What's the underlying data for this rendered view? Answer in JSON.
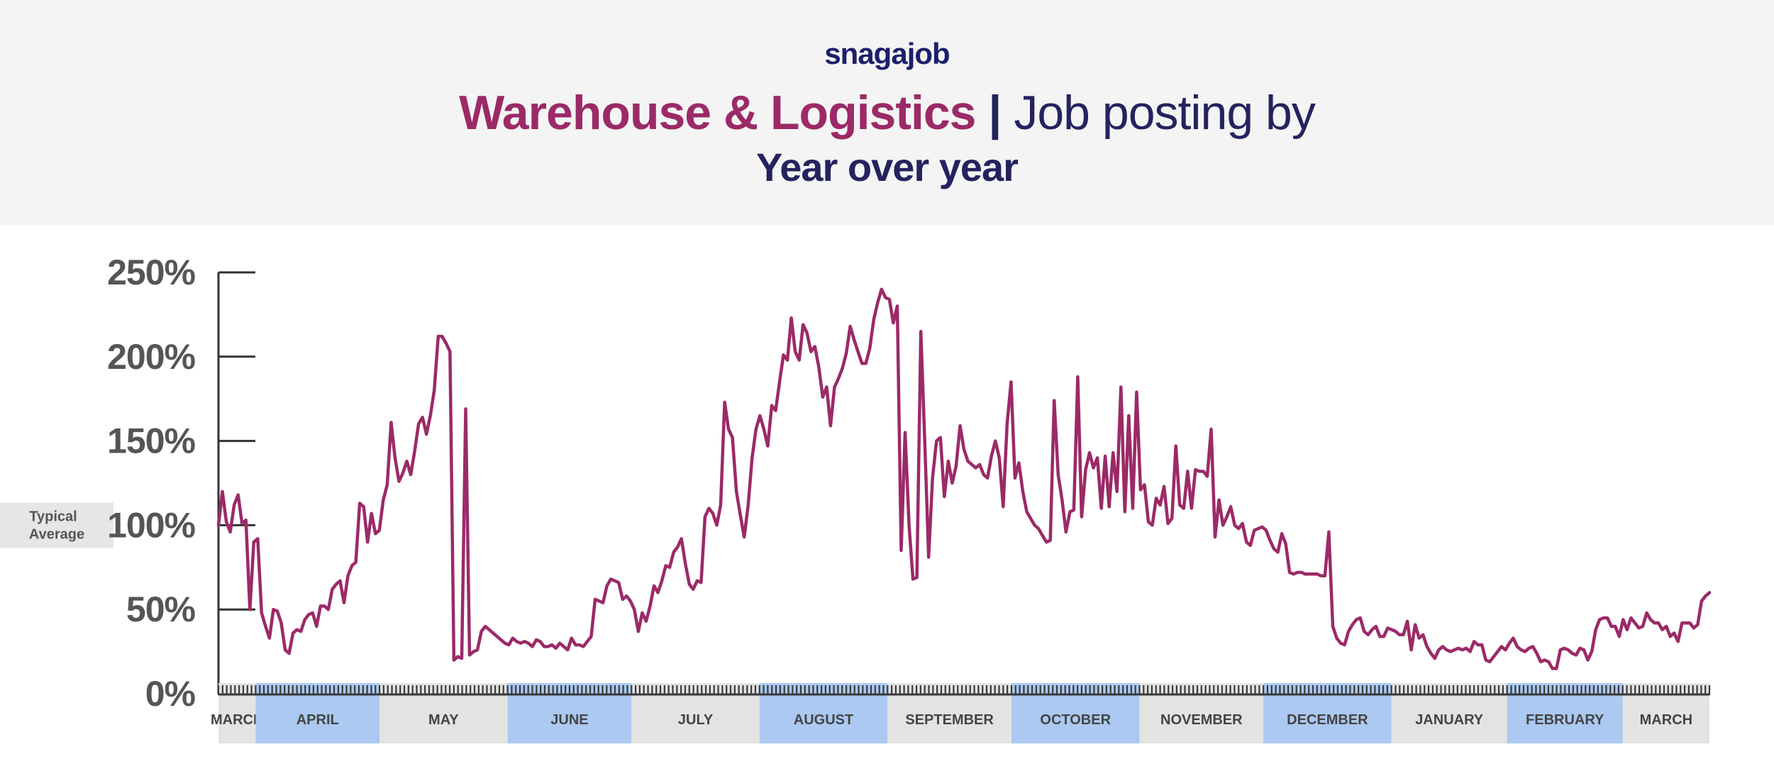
{
  "brand": {
    "logo_text": "snagajob",
    "logo_color": "#1d1f6b",
    "accent": "#9b2a67",
    "navy": "#24235f",
    "header_bg": "#f4f4f4"
  },
  "header": {
    "industry": "Warehouse & Logistics",
    "separator": "|",
    "title_rest": "Job posting by",
    "subtitle": "Year over year"
  },
  "chart_data": {
    "type": "line",
    "title": "Warehouse & Logistics | Job posting by Year over year",
    "xlabel": "",
    "ylabel": "",
    "ylim": [
      0,
      250
    ],
    "y_ticks": [
      0,
      50,
      100,
      150,
      200,
      250
    ],
    "y_tick_labels": [
      "0%",
      "50%",
      "100%",
      "150%",
      "200%",
      "250%"
    ],
    "reference_line": {
      "value": 100,
      "label_line1": "Typical",
      "label_line2": "Average"
    },
    "months": [
      {
        "label": "MARCH",
        "days": 9,
        "highlight": false
      },
      {
        "label": "APRIL",
        "days": 30,
        "highlight": true
      },
      {
        "label": "MAY",
        "days": 31,
        "highlight": false
      },
      {
        "label": "JUNE",
        "days": 30,
        "highlight": true
      },
      {
        "label": "JULY",
        "days": 31,
        "highlight": false
      },
      {
        "label": "AUGUST",
        "days": 31,
        "highlight": true
      },
      {
        "label": "SEPTEMBER",
        "days": 30,
        "highlight": false
      },
      {
        "label": "OCTOBER",
        "days": 31,
        "highlight": true
      },
      {
        "label": "NOVEMBER",
        "days": 30,
        "highlight": false
      },
      {
        "label": "DECEMBER",
        "days": 31,
        "highlight": true
      },
      {
        "label": "JANUARY",
        "days": 28,
        "highlight": false
      },
      {
        "label": "FEBRUARY",
        "days": 28,
        "highlight": true
      },
      {
        "label": "MARCH",
        "days": 21,
        "highlight": false
      }
    ],
    "colors": {
      "line": "#9b2a67",
      "month_highlight": "#abc9f1",
      "month_plain": "#e3e3e3",
      "axis": "#333333",
      "tick_text": "#555555"
    },
    "series": [
      {
        "values": [
          100,
          120,
          102,
          96,
          112,
          118,
          101,
          103,
          50,
          90,
          92,
          48,
          40,
          33,
          50,
          49,
          42,
          26,
          24,
          36,
          38,
          37,
          44,
          47,
          48,
          40,
          52,
          52,
          50,
          62,
          65,
          67,
          54,
          70,
          76,
          78,
          113,
          111,
          90,
          107,
          95,
          97,
          115,
          124,
          161,
          140,
          126,
          131,
          138,
          130,
          144,
          160,
          164,
          154,
          165,
          180,
          212,
          212,
          208,
          203,
          20,
          22,
          21,
          169,
          23,
          25,
          26,
          37,
          40,
          38,
          36,
          34,
          32,
          30,
          29,
          33,
          31,
          30,
          31,
          30,
          28,
          32,
          31,
          28,
          28,
          29,
          27,
          30,
          28,
          26,
          33,
          29,
          29,
          28,
          31,
          34,
          56,
          55,
          54,
          64,
          68,
          67,
          66,
          56,
          58,
          55,
          50,
          37,
          48,
          43,
          52,
          64,
          60,
          67,
          76,
          75,
          84,
          87,
          92,
          77,
          65,
          62,
          67,
          66,
          105,
          110,
          107,
          100,
          112,
          173,
          157,
          152,
          120,
          106,
          93,
          112,
          140,
          157,
          165,
          157,
          147,
          171,
          168,
          185,
          201,
          198,
          223,
          203,
          198,
          219,
          214,
          203,
          206,
          194,
          176,
          182,
          159,
          182,
          187,
          193,
          202,
          218,
          210,
          203,
          196,
          196,
          205,
          222,
          232,
          240,
          235,
          234,
          220,
          230,
          85,
          155,
          100,
          68,
          69,
          215,
          150,
          81,
          128,
          150,
          152,
          117,
          138,
          125,
          135,
          159,
          145,
          138,
          136,
          134,
          136,
          130,
          128,
          141,
          150,
          140,
          111,
          160,
          185,
          128,
          137,
          120,
          108,
          104,
          100,
          98,
          94,
          90,
          91,
          174,
          130,
          115,
          96,
          108,
          109,
          188,
          105,
          133,
          143,
          134,
          140,
          110,
          141,
          111,
          143,
          120,
          182,
          108,
          165,
          110,
          179,
          121,
          124,
          102,
          100,
          116,
          112,
          123,
          101,
          104,
          147,
          112,
          110,
          132,
          110,
          133,
          132,
          132,
          129,
          157,
          93,
          115,
          100,
          105,
          111,
          100,
          98,
          101,
          90,
          88,
          97,
          98,
          99,
          97,
          91,
          86,
          84,
          95,
          89,
          72,
          71,
          72,
          72,
          71,
          71,
          71,
          71,
          70,
          70,
          96,
          40,
          33,
          30,
          29,
          37,
          41,
          44,
          45,
          37,
          35,
          38,
          40,
          34,
          34,
          39,
          38,
          37,
          35,
          35,
          43,
          26,
          41,
          33,
          35,
          28,
          24,
          21,
          26,
          28,
          26,
          25,
          26,
          27,
          26,
          27,
          25,
          31,
          29,
          29,
          20,
          19,
          22,
          25,
          28,
          26,
          30,
          33,
          28,
          26,
          25,
          27,
          28,
          24,
          19,
          20,
          19,
          15,
          15,
          26,
          27,
          26,
          24,
          23,
          27,
          26,
          20,
          25,
          38,
          44,
          45,
          45,
          40,
          40,
          34,
          44,
          38,
          45,
          42,
          39,
          40,
          48,
          44,
          42,
          42,
          38,
          40,
          34,
          36,
          31,
          42,
          42,
          42,
          39,
          41,
          55,
          58,
          60
        ]
      }
    ]
  }
}
